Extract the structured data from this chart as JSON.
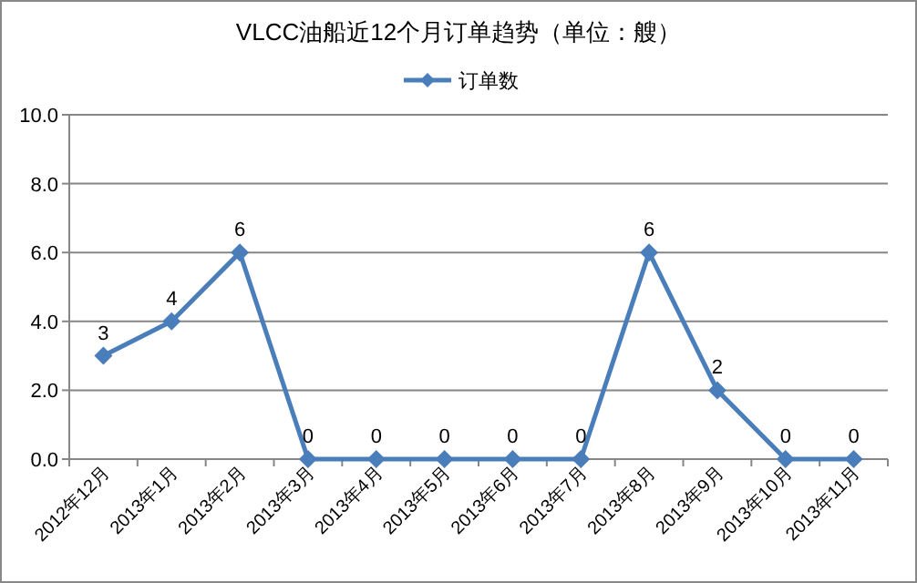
{
  "chart_data": {
    "type": "line",
    "title": "VLCC油船近12个月订单趋势（单位：艘）",
    "categories": [
      "2012年12月",
      "2013年1月",
      "2013年2月",
      "2013年3月",
      "2013年4月",
      "2013年5月",
      "2013年6月",
      "2013年7月",
      "2013年8月",
      "2013年9月",
      "2013年10月",
      "2013年11月"
    ],
    "series": [
      {
        "name": "订单数",
        "color": "#4a7ebb",
        "values": [
          3,
          4,
          6,
          0,
          0,
          0,
          0,
          0,
          6,
          2,
          0,
          0
        ]
      }
    ],
    "ylim": [
      0,
      10
    ],
    "yticks": [
      {
        "value": 0,
        "label": "0.0"
      },
      {
        "value": 2,
        "label": "2.0"
      },
      {
        "value": 4,
        "label": "4.0"
      },
      {
        "value": 6,
        "label": "6.0"
      },
      {
        "value": 8,
        "label": "8.0"
      },
      {
        "value": 10,
        "label": "10.0"
      }
    ],
    "grid": "y",
    "legend": "top",
    "marker": "diamond",
    "line_style": "solid",
    "data_labels": true
  }
}
